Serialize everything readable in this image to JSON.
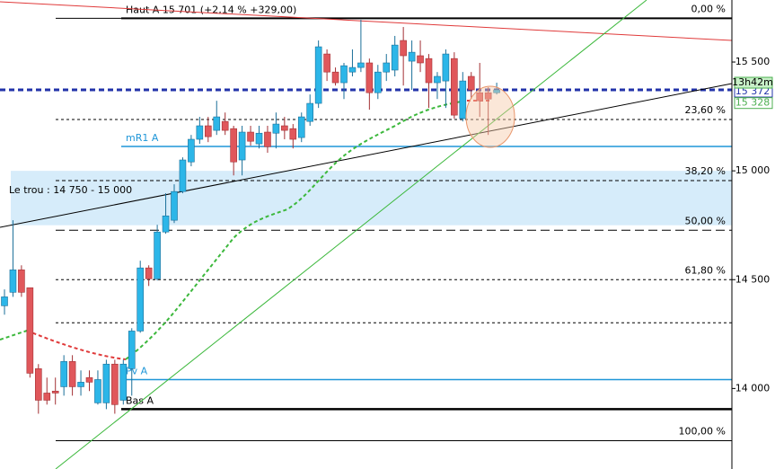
{
  "chart_data": {
    "type": "candlestick",
    "categories": [
      null,
      null,
      null,
      null,
      null,
      null,
      null,
      null,
      null,
      null,
      null,
      null,
      null,
      null,
      null,
      null,
      null,
      null,
      null,
      null,
      null,
      null,
      null,
      null,
      null,
      null,
      null,
      null,
      null,
      null,
      null,
      null,
      null,
      null,
      null,
      null,
      null,
      null,
      null,
      null,
      null,
      null,
      null,
      null,
      null,
      null,
      null,
      null,
      null,
      null,
      null,
      null,
      null,
      null,
      null,
      null,
      null,
      null,
      null
    ],
    "open": [
      14380,
      14442,
      14545,
      14463,
      14091,
      13979,
      13988,
      14008,
      14124,
      14008,
      14050,
      13934,
      13934,
      14112,
      13946,
      14091,
      14264,
      14554,
      14504,
      14719,
      14773,
      14905,
      15041,
      15145,
      15207,
      15186,
      15227,
      15194,
      15050,
      15178,
      15124,
      15178,
      15173,
      15207,
      15194,
      15153,
      15227,
      15310,
      15537,
      15454,
      15405,
      15454,
      15475,
      15496,
      15359,
      15454,
      15463,
      15599,
      15504,
      15529,
      15516,
      15405,
      15413,
      15516,
      15240,
      15434,
      15359,
      15359,
      15359
    ],
    "high": [
      14455,
      14773,
      14566,
      14463,
      14112,
      14050,
      14050,
      14153,
      14153,
      14083,
      14083,
      14083,
      14132,
      14132,
      14132,
      14277,
      14587,
      14566,
      14752,
      14897,
      14938,
      15062,
      15165,
      15248,
      15248,
      15322,
      15268,
      15207,
      15207,
      15207,
      15207,
      15207,
      15268,
      15248,
      15215,
      15268,
      15351,
      15599,
      15558,
      15475,
      15496,
      15558,
      15694,
      15516,
      15487,
      15537,
      15620,
      15661,
      15599,
      15599,
      15537,
      15454,
      15558,
      15545,
      15454,
      15454,
      15496,
      15384,
      15405
    ],
    "low": [
      14339,
      14421,
      14421,
      14050,
      13884,
      13926,
      13926,
      13967,
      13967,
      13967,
      13988,
      13926,
      13905,
      13884,
      13926,
      13967,
      14256,
      14471,
      14496,
      14711,
      14760,
      14897,
      15021,
      15124,
      15132,
      15165,
      15165,
      14979,
      14979,
      15116,
      15103,
      15083,
      15103,
      15145,
      15103,
      15132,
      15207,
      15289,
      15413,
      15392,
      15330,
      15434,
      15454,
      15281,
      15330,
      15413,
      15434,
      15392,
      15372,
      15454,
      15289,
      15330,
      15289,
      15240,
      15227,
      15330,
      15248,
      15165,
      15351
    ],
    "close": [
      14421,
      14545,
      14442,
      14070,
      13946,
      13946,
      13979,
      14124,
      14008,
      14029,
      14029,
      14041,
      14112,
      13926,
      14112,
      14264,
      14554,
      14504,
      14719,
      14793,
      14905,
      15050,
      15145,
      15207,
      15157,
      15248,
      15186,
      15041,
      15178,
      15136,
      15173,
      15111,
      15215,
      15186,
      15145,
      15248,
      15310,
      15570,
      15454,
      15405,
      15483,
      15475,
      15496,
      15359,
      15454,
      15496,
      15578,
      15529,
      15545,
      15496,
      15405,
      15434,
      15537,
      15256,
      15413,
      15372,
      15322,
      15330,
      15372
    ],
    "up_color": "#2cb6e8",
    "down_color": "#e0575b",
    "ylim": [
      13630,
      15785
    ],
    "yticks": [
      {
        "value": 14000,
        "label": "14 000"
      },
      {
        "value": 14500,
        "label": "14 500"
      },
      {
        "value": 15000,
        "label": "15 000"
      },
      {
        "value": 15500,
        "label": "15 500"
      }
    ],
    "fib_levels": [
      {
        "value": 15701,
        "label": "0,00 %"
      },
      {
        "value": 15236,
        "label": "23,60 %"
      },
      {
        "value": 14955,
        "label": "38,20 %"
      },
      {
        "value": 14727,
        "label": "50,00 %"
      },
      {
        "value": 14500,
        "label": "61,80 %"
      },
      {
        "value": 14302,
        "label": null
      },
      {
        "value": 13760,
        "label": "100,00 %"
      }
    ],
    "levels": [
      {
        "value": 15701,
        "label": "Haut A 15 701 (+2,14 % +329,00)",
        "color": "#000000"
      },
      {
        "value": 15112,
        "label": "mR1 A",
        "color": "#1e96d8"
      },
      {
        "value": 14041,
        "label": "Pv A",
        "color": "#1e96d8"
      },
      {
        "value": 13905,
        "label": "Bas A",
        "color": "#000000"
      }
    ],
    "zone": {
      "label": "Le trou : 14 750 - 15 000",
      "from": 14750,
      "to": 15000,
      "color": "#d6ecfa"
    },
    "price_line": {
      "value": 15372,
      "label": "15 372",
      "color": "#2233aa"
    },
    "ma_label": {
      "value": 15328,
      "label": "15 328",
      "color": "#4caf50"
    },
    "time_label": "13h42m"
  }
}
